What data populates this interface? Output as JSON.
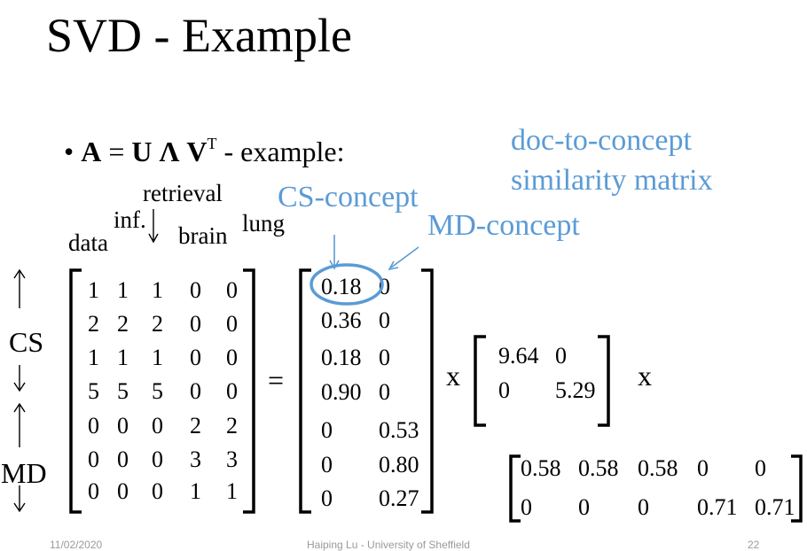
{
  "title": "SVD - Example",
  "bullet": {
    "glyph": "•",
    "A": "A",
    "eq": "=",
    "U": "U",
    "L": "Λ",
    "V": "V",
    "T": "T",
    "rest": "- example:"
  },
  "annotations": {
    "doc_concept_line1": "doc-to-concept",
    "doc_concept_line2": "similarity matrix",
    "cs_concept": "CS-concept",
    "md_concept": "MD-concept"
  },
  "column_headers": {
    "data": "data",
    "inf": "inf.",
    "retrieval": "retrieval",
    "brain": "brain",
    "lung": "lung"
  },
  "row_groups": {
    "cs": "CS",
    "md": "MD"
  },
  "operators": {
    "equals": "=",
    "times1": "x",
    "times2": "x"
  },
  "matrix_A": [
    [
      "1",
      "1",
      "1",
      "0",
      "0"
    ],
    [
      "2",
      "2",
      "2",
      "0",
      "0"
    ],
    [
      "1",
      "1",
      "1",
      "0",
      "0"
    ],
    [
      "5",
      "5",
      "5",
      "0",
      "0"
    ],
    [
      "0",
      "0",
      "0",
      "2",
      "2"
    ],
    [
      "0",
      "0",
      "0",
      "3",
      "3"
    ],
    [
      "0",
      "0",
      "0",
      "1",
      "1"
    ]
  ],
  "matrix_U": [
    [
      "0.18",
      "0"
    ],
    [
      "0.36",
      "0"
    ],
    [
      "0.18",
      "0"
    ],
    [
      "0.90",
      "0"
    ],
    [
      "0",
      "0.53"
    ],
    [
      "0",
      "0.80"
    ],
    [
      "0",
      "0.27"
    ]
  ],
  "matrix_L": [
    [
      "9.64",
      "0"
    ],
    [
      "0",
      "5.29"
    ]
  ],
  "matrix_VT": [
    [
      "0.58",
      "0.58",
      "0.58",
      "0",
      "0"
    ],
    [
      "0",
      "0",
      "0",
      "0.71",
      "0.71"
    ]
  ],
  "footer": {
    "date": "11/02/2020",
    "author": "Haiping Lu - University of Sheffield",
    "page": "22"
  },
  "colors": {
    "annotation": "#5b9bd5"
  }
}
